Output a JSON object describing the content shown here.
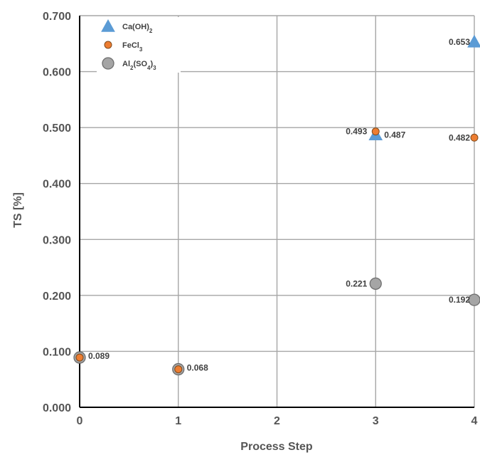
{
  "chart_data": {
    "type": "scatter",
    "xlabel": "Process Step",
    "ylabel": "TS  [%]",
    "xlim": [
      0,
      4
    ],
    "ylim": [
      0,
      0.7
    ],
    "x_ticks": [
      "0",
      "1",
      "2",
      "3",
      "4"
    ],
    "y_ticks": [
      "0.000",
      "0.100",
      "0.200",
      "0.300",
      "0.400",
      "0.500",
      "0.600",
      "0.700"
    ],
    "grid": true,
    "legend_position": "top-left",
    "series": [
      {
        "name_parts": [
          "Ca(OH)",
          "2",
          ""
        ],
        "marker": "triangle",
        "color": "#5b9bd5",
        "points": [
          {
            "x": 3,
            "y": 0.487,
            "label": "0.487"
          },
          {
            "x": 4,
            "y": 0.653,
            "label": "0.653"
          }
        ]
      },
      {
        "name_parts": [
          "FeCl",
          "3",
          ""
        ],
        "marker": "small-circle",
        "color": "#ed7d31",
        "points": [
          {
            "x": 0,
            "y": 0.089,
            "label": ""
          },
          {
            "x": 1,
            "y": 0.068,
            "label": ""
          },
          {
            "x": 3,
            "y": 0.493,
            "label": "0.493"
          },
          {
            "x": 4,
            "y": 0.482,
            "label": "0.482"
          }
        ]
      },
      {
        "name_parts": [
          "Al",
          "2",
          "(SO",
          "4",
          ")",
          "3",
          ""
        ],
        "marker": "large-circle",
        "color": "#a5a5a5",
        "points": [
          {
            "x": 0,
            "y": 0.089,
            "label": "0.089"
          },
          {
            "x": 1,
            "y": 0.068,
            "label": "0.068"
          },
          {
            "x": 3,
            "y": 0.221,
            "label": "0.221"
          },
          {
            "x": 4,
            "y": 0.192,
            "label": "0.192"
          }
        ]
      }
    ]
  }
}
